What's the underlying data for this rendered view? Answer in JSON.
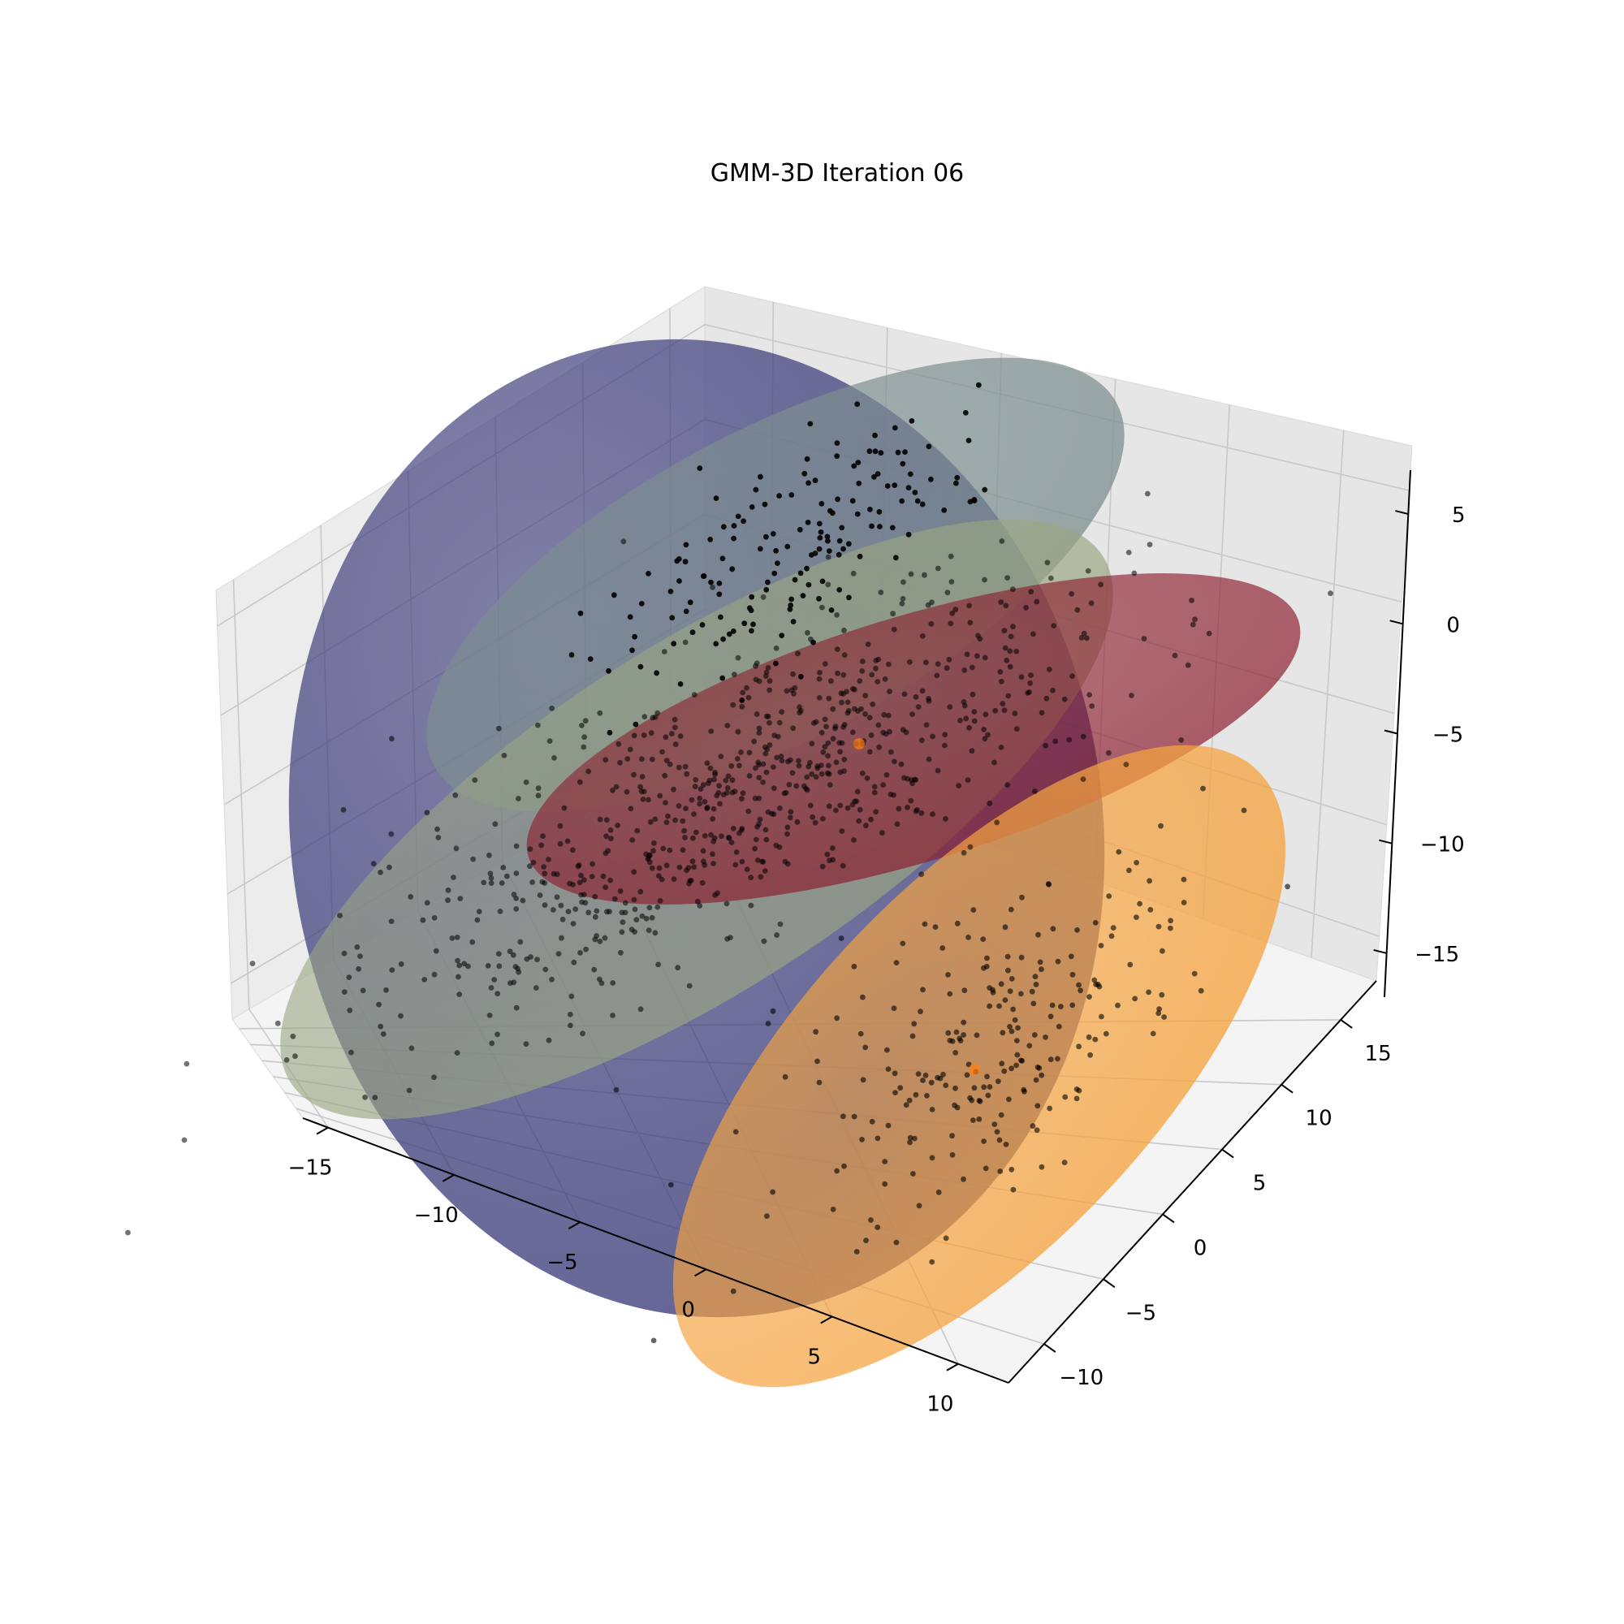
{
  "chart_data": {
    "type": "scatter",
    "title": "GMM-3D Iteration 06",
    "axes": {
      "x": {
        "ticks": [
          -15,
          -10,
          -5,
          0,
          5,
          10
        ],
        "tick_labels": [
          "−15",
          "−10",
          "−5",
          "0",
          "5",
          "10"
        ],
        "range": [
          -16,
          12
        ]
      },
      "y": {
        "ticks": [
          -10,
          -5,
          0,
          5,
          10,
          15
        ],
        "tick_labels": [
          "−10",
          "−5",
          "0",
          "5",
          "10",
          "15"
        ],
        "range": [
          -13,
          18
        ]
      },
      "z": {
        "ticks": [
          -15,
          -10,
          -5,
          0,
          5
        ],
        "tick_labels": [
          "−15",
          "−10",
          "−5",
          "0",
          "5"
        ],
        "range": [
          -17,
          7
        ]
      }
    },
    "grid": true,
    "legend": "none",
    "point_color": "#000000",
    "components": [
      {
        "color": "#3b3b7a",
        "center": [
          -4,
          0,
          -4
        ],
        "points": 0
      },
      {
        "color": "#7d8f8f",
        "center": [
          -2,
          10,
          5
        ],
        "points": 160
      },
      {
        "color": "#9aa583",
        "center": [
          -6,
          2,
          -7
        ],
        "points": 260
      },
      {
        "color": "#8b1a2a",
        "center": [
          0,
          4,
          -4
        ],
        "points": 520
      },
      {
        "color": "#f5a340",
        "center": [
          8,
          -4,
          -10
        ],
        "points": 240
      }
    ]
  }
}
